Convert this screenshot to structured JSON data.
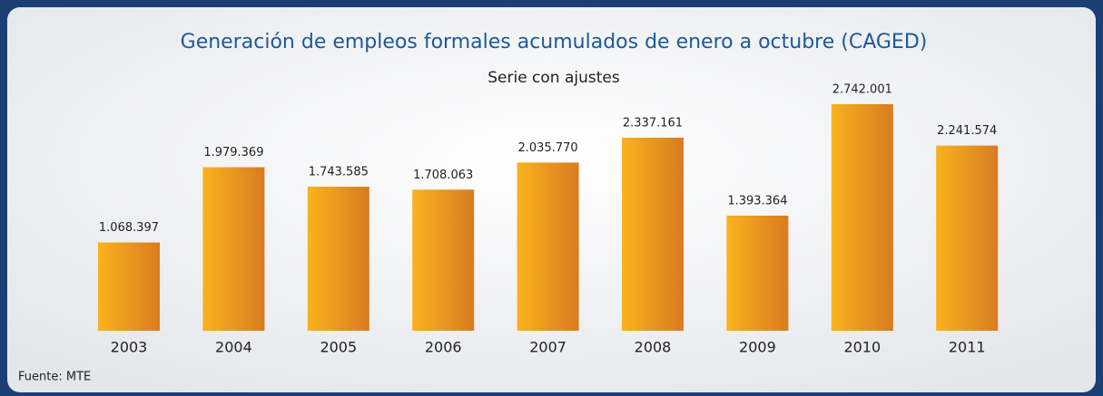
{
  "chart_data": {
    "type": "bar",
    "title": "Generación de empleos formales acumulados de enero a octubre (CAGED)",
    "subtitle": "Serie con ajustes",
    "source": "Fuente: MTE",
    "categories": [
      "2003",
      "2004",
      "2005",
      "2006",
      "2007",
      "2008",
      "2009",
      "2010",
      "2011"
    ],
    "values": [
      1068397,
      1979369,
      1743585,
      1708063,
      2035770,
      2337161,
      1393364,
      2742001,
      2241574
    ],
    "value_labels": [
      "1.068.397",
      "1.979.369",
      "1.743.585",
      "1.708.063",
      "2.035.770",
      "2.337.161",
      "1.393.364",
      "2.742.001",
      "2.241.574"
    ],
    "color": "#f0a020"
  }
}
